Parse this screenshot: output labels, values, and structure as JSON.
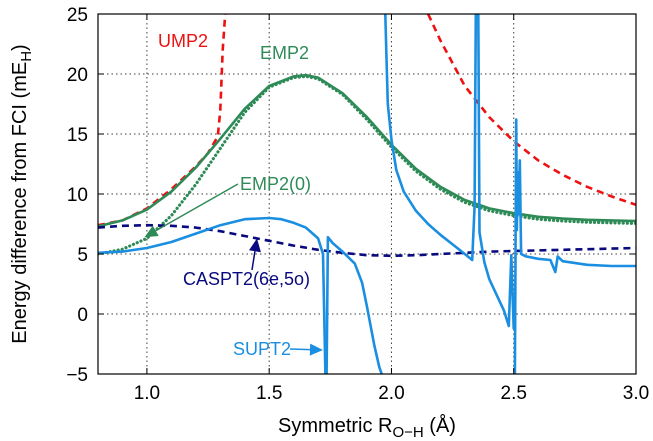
{
  "chart_data": {
    "type": "line",
    "title": "",
    "xlabel": "Symmetric R",
    "xlabel_sub": "O−H",
    "xlabel_unit": " (Å)",
    "ylabel": "Energy difference from FCI (mE",
    "ylabel_sub": "H",
    "ylabel_close": ")",
    "xlim": [
      0.8,
      3.0
    ],
    "ylim": [
      -5,
      25
    ],
    "xticks": [
      1.0,
      1.5,
      2.0,
      2.5,
      3.0
    ],
    "xtick_labels": [
      "1.0",
      "1.5",
      "2.0",
      "2.5",
      "3.0"
    ],
    "yticks": [
      -5,
      0,
      5,
      10,
      15,
      20,
      25
    ],
    "ytick_labels": [
      "−5",
      "0",
      "5",
      "10",
      "15",
      "20",
      "25"
    ],
    "grid": true,
    "series": [
      {
        "name": "UMP2",
        "color": "#ee1111",
        "style": "dashed",
        "segments": [
          {
            "x": [
              0.8,
              0.9,
              1.0,
              1.1,
              1.2,
              1.25,
              1.29,
              1.3,
              1.31,
              1.32
            ],
            "y": [
              7.4,
              7.8,
              8.8,
              10.4,
              12.3,
              13.4,
              14.8,
              17.0,
              22.0,
              25.0
            ]
          },
          {
            "x": [
              2.15,
              2.2,
              2.3,
              2.4,
              2.5,
              2.6,
              2.7,
              2.8,
              2.9,
              3.0
            ],
            "y": [
              25.0,
              22.8,
              19.0,
              16.4,
              14.4,
              12.8,
              11.6,
              10.6,
              9.8,
              9.1
            ]
          }
        ]
      },
      {
        "name": "EMP2",
        "color": "#2e8b57",
        "style": "solid",
        "segments": [
          {
            "x": [
              0.8,
              0.9,
              1.0,
              1.1,
              1.2,
              1.3,
              1.4,
              1.5,
              1.6,
              1.65,
              1.7,
              1.8,
              1.9,
              2.0,
              2.1,
              2.2,
              2.3,
              2.4,
              2.5,
              2.6,
              2.7,
              2.8,
              2.9,
              3.0
            ],
            "y": [
              7.3,
              7.8,
              8.7,
              10.2,
              12.2,
              14.6,
              17.1,
              19.0,
              19.8,
              19.9,
              19.7,
              18.4,
              16.4,
              14.1,
              12.1,
              10.6,
              9.5,
              8.8,
              8.4,
              8.1,
              7.95,
              7.85,
              7.8,
              7.75
            ]
          }
        ]
      },
      {
        "name": "EMP2(0)",
        "color": "#2e8b57",
        "style": "dotted",
        "segments": [
          {
            "x": [
              0.8,
              0.9,
              1.0,
              1.1,
              1.2,
              1.3,
              1.4,
              1.5,
              1.6,
              1.65,
              1.7,
              1.8,
              1.9,
              2.0,
              2.1,
              2.2,
              2.3,
              2.4,
              2.5,
              2.6,
              2.7,
              2.8,
              2.9,
              3.0
            ],
            "y": [
              5.0,
              5.4,
              6.3,
              8.2,
              10.8,
              13.8,
              16.8,
              18.9,
              19.7,
              19.8,
              19.6,
              18.3,
              16.2,
              13.9,
              11.9,
              10.4,
              9.3,
              8.6,
              8.2,
              7.9,
              7.75,
              7.65,
              7.6,
              7.55
            ]
          }
        ]
      },
      {
        "name": "CASPT2(6e,5o)",
        "color": "#0a0a80",
        "style": "dashed",
        "segments": [
          {
            "x": [
              0.8,
              0.9,
              1.0,
              1.1,
              1.2,
              1.3,
              1.4,
              1.5,
              1.6,
              1.7,
              1.8,
              1.9,
              2.0,
              2.1,
              2.2,
              2.3,
              2.4,
              2.5,
              2.6,
              2.7,
              2.8,
              2.9,
              3.0
            ],
            "y": [
              7.2,
              7.35,
              7.4,
              7.35,
              7.2,
              6.9,
              6.5,
              6.1,
              5.7,
              5.35,
              5.1,
              4.9,
              4.85,
              4.9,
              5.0,
              5.1,
              5.2,
              5.25,
              5.3,
              5.35,
              5.4,
              5.45,
              5.5
            ]
          }
        ]
      },
      {
        "name": "SUPT2",
        "color": "#1a8ee0",
        "style": "solid",
        "segments": [
          {
            "x": [
              0.8,
              0.9,
              1.0,
              1.1,
              1.2,
              1.3,
              1.4,
              1.5,
              1.55,
              1.6,
              1.65,
              1.7,
              1.72,
              1.73
            ],
            "y": [
              5.1,
              5.2,
              5.5,
              6.0,
              6.7,
              7.4,
              7.9,
              8.0,
              7.9,
              7.6,
              7.2,
              6.3,
              5.0,
              -5.0
            ]
          },
          {
            "x": [
              1.735,
              1.74,
              1.76,
              1.8,
              1.85,
              1.88,
              1.9,
              1.93,
              1.95,
              1.96
            ],
            "y": [
              -5.0,
              6.4,
              5.9,
              5.2,
              4.2,
              2.6,
              0.6,
              -2.6,
              -4.4,
              -5.0
            ]
          },
          {
            "x": [
              1.975,
              1.98,
              1.985,
              2.0,
              2.02,
              2.05,
              2.1,
              2.15,
              2.2,
              2.25,
              2.3,
              2.33,
              2.34,
              2.345
            ],
            "y": [
              25.0,
              21.0,
              17.5,
              14.5,
              12.0,
              10.2,
              8.6,
              7.5,
              6.6,
              5.8,
              5.0,
              4.5,
              9.0,
              25.0
            ]
          },
          {
            "x": [
              2.355,
              2.36,
              2.38,
              2.4,
              2.43,
              2.46,
              2.48,
              2.49,
              2.5
            ],
            "y": [
              25.0,
              6.8,
              4.3,
              2.9,
              1.6,
              0.3,
              -1.0,
              4.9,
              -1.2
            ]
          },
          {
            "x": [
              2.505,
              2.51,
              2.513,
              2.516,
              2.52,
              2.525,
              2.53,
              2.55,
              2.6,
              2.65,
              2.67,
              2.68,
              2.7,
              2.8,
              2.9,
              3.0
            ],
            "y": [
              -5.0,
              16.2,
              7.0,
              11.8,
              8.3,
              12.8,
              5.0,
              4.8,
              4.6,
              4.5,
              3.5,
              4.8,
              4.4,
              4.1,
              4.0,
              4.0
            ]
          }
        ]
      }
    ],
    "annotations": [
      {
        "text": "UMP2",
        "color": "#ee1111"
      },
      {
        "text": "EMP2",
        "color": "#2e8b57"
      },
      {
        "text": "EMP2(0)",
        "color": "#2e8b57",
        "arrow_to": [
          0.99,
          6.4
        ]
      },
      {
        "text": "CASPT2(6e,5o)",
        "color": "#0a0a80",
        "arrow_to": [
          1.45,
          6.3
        ]
      },
      {
        "text": "SUPT2",
        "color": "#1a8ee0",
        "arrow_to": [
          1.72,
          -3.0
        ]
      }
    ]
  }
}
